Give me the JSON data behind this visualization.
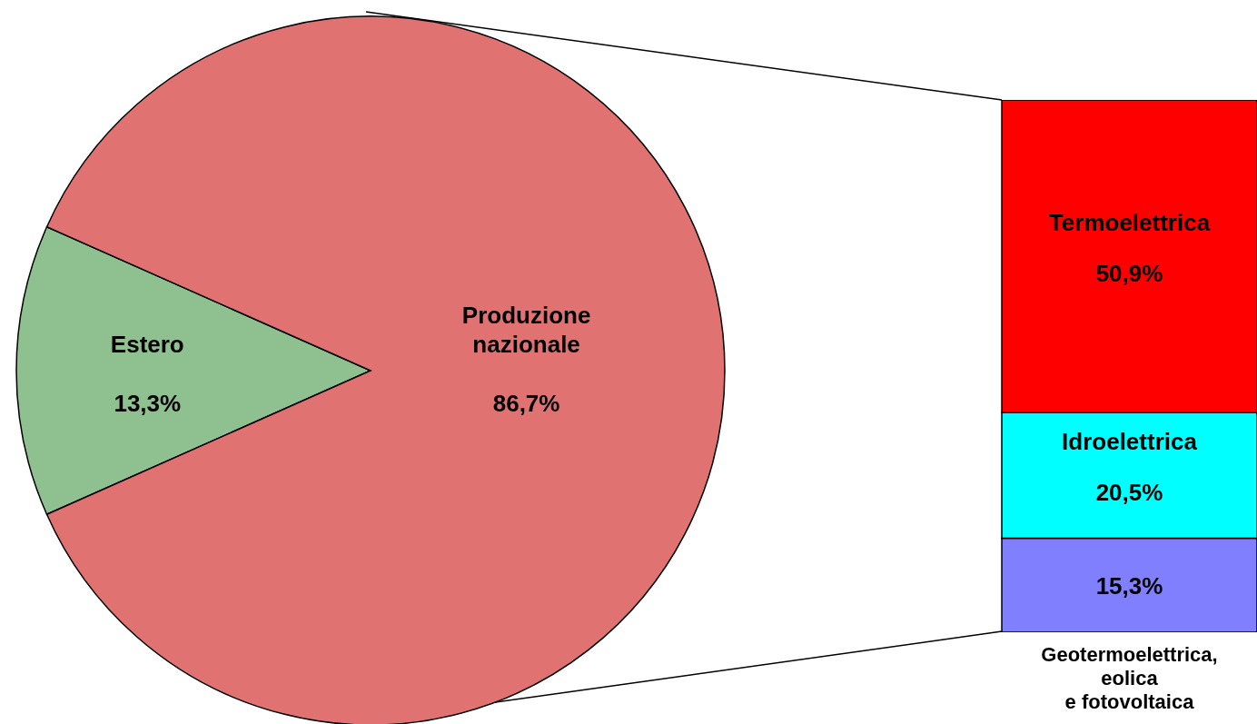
{
  "chart_data": [
    {
      "type": "pie",
      "categories": [
        "Estero",
        "Produzione nazionale"
      ],
      "values": [
        13.3,
        86.7
      ],
      "colors": [
        "#8fc08f",
        "#e07272"
      ],
      "value_labels": [
        "13,3%",
        "86,7%"
      ]
    },
    {
      "type": "bar",
      "stacked": true,
      "categories": [
        null
      ],
      "series": [
        {
          "name": "Geotermoelettrica, eolica e fotovoltaica",
          "color": "#8080ff",
          "values": [
            15.3
          ],
          "value_labels": [
            "15,3%"
          ]
        },
        {
          "name": "Idroelettrica",
          "color": "#00ffff",
          "values": [
            20.5
          ],
          "value_labels": [
            "20,5%"
          ]
        },
        {
          "name": "Termoelettrica",
          "color": "#ff0000",
          "values": [
            50.9
          ],
          "value_labels": [
            "50,9%"
          ]
        }
      ]
    }
  ]
}
